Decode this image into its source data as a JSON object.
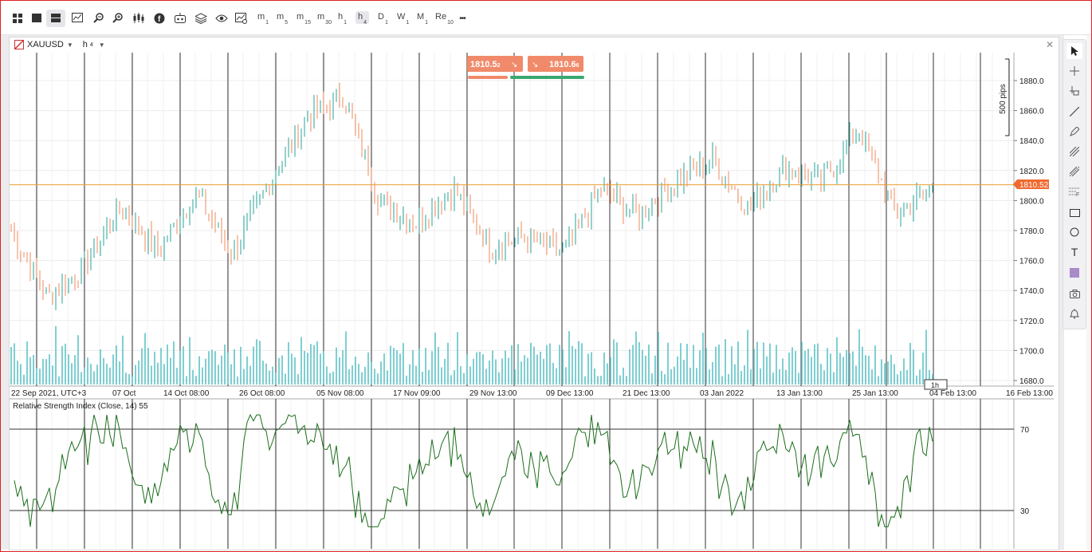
{
  "toolbar": {
    "icons": [
      "layout-grid-icon",
      "single-window-icon",
      "two-windows-icon",
      "indicator-chart-icon",
      "zoom-out-icon",
      "zoom-in-icon",
      "candles-icon",
      "facebook-icon",
      "robot-icon",
      "layers-icon",
      "eye-icon",
      "chart-settings-icon"
    ],
    "timeframes": [
      {
        "main": "m",
        "sub": "1"
      },
      {
        "main": "m",
        "sub": "5"
      },
      {
        "main": "m",
        "sub": "15"
      },
      {
        "main": "m",
        "sub": "30"
      },
      {
        "main": "h",
        "sub": "1"
      },
      {
        "main": "h",
        "sub": "4"
      },
      {
        "main": "D",
        "sub": "1"
      },
      {
        "main": "W",
        "sub": "1"
      },
      {
        "main": "M",
        "sub": "1"
      },
      {
        "main": "Re",
        "sub": "10"
      }
    ],
    "active_timeframe": "h4",
    "more": "•••"
  },
  "chart": {
    "symbol": "XAUUSD",
    "timeframe_main": "h",
    "timeframe_sub": "4",
    "sell_price_main": "1810.5",
    "sell_price_sup": "2",
    "buy_price_main": "1810.6",
    "buy_price_sup": "6",
    "current_price_label": "1810.52",
    "ruler_label": "500 pips",
    "hover_tf_label": "1h",
    "rsi_label": "Relative Strength Index (Close, 14) 55",
    "price_ticks": [
      "1880.0",
      "1860.0",
      "1840.0",
      "1820.0",
      "1800.0",
      "1780.0",
      "1760.0",
      "1740.0",
      "1720.0",
      "1700.0",
      "1680.0"
    ],
    "time_labels": [
      "22 Sep 2021, UTC+3",
      "07 Oct",
      "14 Oct 08:00",
      "26 Oct 08:00",
      "05 Nov 08:00",
      "17 Nov 09:00",
      "29 Nov 13:00",
      "09 Dec 13:00",
      "21 Dec 13:00",
      "03 Jan 2022",
      "13 Jan 13:00",
      "25 Jan 13:00",
      "04 Feb 13:00",
      "16 Feb 13:00"
    ],
    "rsi_levels": [
      "70",
      "30"
    ]
  },
  "chart_data": {
    "type": "candlestick",
    "price_axis_range": [
      1680,
      1890
    ],
    "rsi_range": [
      20,
      80
    ],
    "rsi_levels": [
      70,
      30
    ],
    "approx_close_path": [
      {
        "date": "22 Sep 2021",
        "price": 1780
      },
      {
        "date": "30 Sep 2021",
        "price": 1735
      },
      {
        "date": "07 Oct",
        "price": 1757
      },
      {
        "date": "14 Oct",
        "price": 1797
      },
      {
        "date": "18 Oct",
        "price": 1765
      },
      {
        "date": "26 Oct",
        "price": 1805
      },
      {
        "date": "03 Nov",
        "price": 1765
      },
      {
        "date": "05 Nov",
        "price": 1812
      },
      {
        "date": "10 Nov",
        "price": 1855
      },
      {
        "date": "16 Nov",
        "price": 1870
      },
      {
        "date": "22 Nov",
        "price": 1800
      },
      {
        "date": "25 Nov",
        "price": 1785
      },
      {
        "date": "29 Nov",
        "price": 1808
      },
      {
        "date": "03 Dec",
        "price": 1770
      },
      {
        "date": "09 Dec",
        "price": 1775
      },
      {
        "date": "15 Dec",
        "price": 1765
      },
      {
        "date": "17 Dec",
        "price": 1808
      },
      {
        "date": "21 Dec",
        "price": 1790
      },
      {
        "date": "29 Dec",
        "price": 1812
      },
      {
        "date": "03 Jan 2022",
        "price": 1828
      },
      {
        "date": "07 Jan",
        "price": 1795
      },
      {
        "date": "13 Jan",
        "price": 1822
      },
      {
        "date": "18 Jan",
        "price": 1812
      },
      {
        "date": "25 Jan",
        "price": 1848
      },
      {
        "date": "28 Jan",
        "price": 1790
      },
      {
        "date": "04 Feb",
        "price": 1810
      }
    ],
    "colors": {
      "up": "#26a69a",
      "down": "#f08a5d",
      "volume": "#5fc3c6",
      "rsi": "#1b6e1b",
      "price_line": "#e8a030",
      "current_price_bg": "#f06a30"
    }
  },
  "right_tools": [
    "cursor-icon",
    "crosshair-icon",
    "measure-icon",
    "line-icon",
    "pencil-icon",
    "fib-icon",
    "channel-icon",
    "gann-icon",
    "rectangle-icon",
    "circle-icon",
    "text-icon",
    "color-swatch-icon",
    "camera-icon",
    "alert-bell-icon"
  ]
}
